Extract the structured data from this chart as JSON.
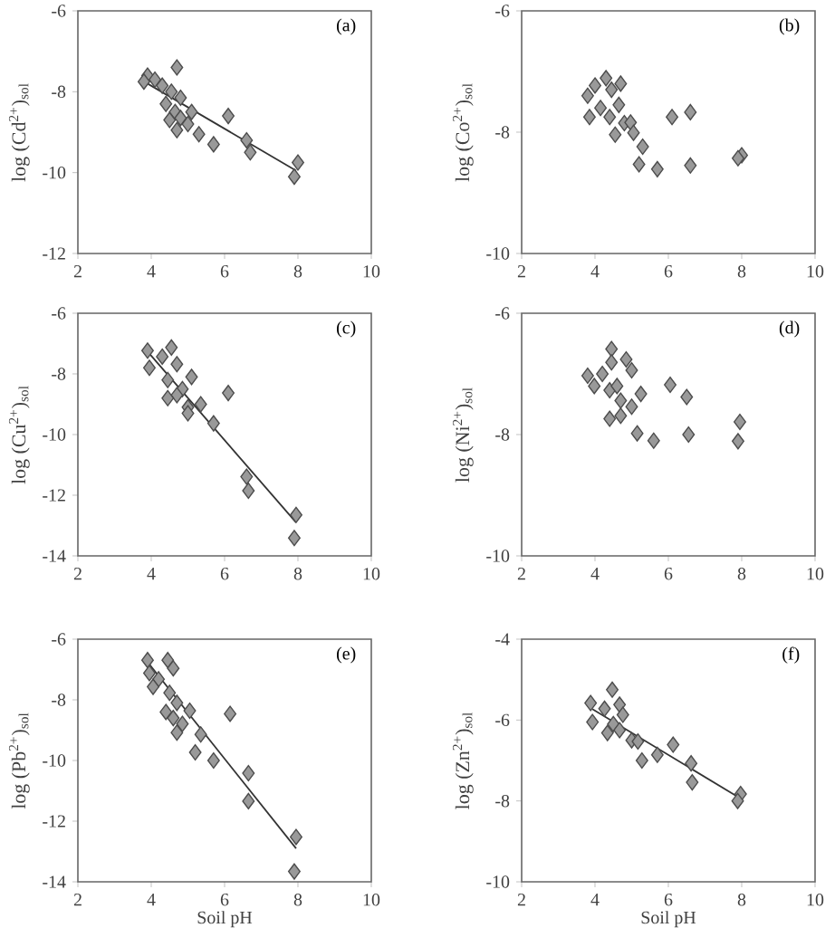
{
  "chart_data": [
    {
      "type": "scatter",
      "title": "(a)",
      "ylabel": "log (Cd$^{2+}$)$_{sol}$",
      "xlim": [
        2,
        10
      ],
      "xticks": [
        2,
        4,
        6,
        8,
        10
      ],
      "ylim": [
        -12,
        -6
      ],
      "yticks": [
        -12,
        -10,
        -8,
        -6
      ],
      "marker": "diamond",
      "series": [
        {
          "color": "#999999",
          "x": [
            3.9,
            3.8,
            4.1,
            4.3,
            4.7,
            4.55,
            4.8,
            4.4,
            4.65,
            4.5,
            4.8,
            5.1,
            5.0,
            4.7,
            5.3,
            5.7,
            6.1,
            6.6,
            6.7,
            8.0,
            7.9
          ],
          "values": [
            -7.6,
            -7.75,
            -7.7,
            -7.85,
            -7.4,
            -8.0,
            -8.15,
            -8.3,
            -8.5,
            -8.7,
            -8.65,
            -8.5,
            -8.8,
            -8.95,
            -9.05,
            -9.3,
            -8.6,
            -9.2,
            -9.5,
            -9.75,
            -10.1
          ]
        },
        {
          "type": "line",
          "marker": "none",
          "color": "#333333",
          "x": [
            3.9,
            7.95
          ],
          "values": [
            -7.8,
            -9.95
          ]
        }
      ]
    },
    {
      "type": "scatter",
      "title": "(b)",
      "ylabel": "log (Co$^{2+}$)$_{sol}$",
      "xlim": [
        2,
        10
      ],
      "xticks": [
        2,
        4,
        6,
        8,
        10
      ],
      "ylim": [
        -10,
        -6
      ],
      "yticks": [
        -10,
        -8,
        -6
      ],
      "marker": "diamond",
      "series": [
        {
          "color": "#999999",
          "x": [
            3.8,
            4.0,
            4.3,
            4.7,
            4.45,
            3.85,
            4.15,
            4.4,
            4.65,
            4.8,
            4.55,
            4.97,
            5.05,
            5.3,
            5.2,
            5.7,
            6.1,
            6.6,
            6.6,
            8.0,
            7.9
          ],
          "values": [
            -7.4,
            -7.23,
            -7.11,
            -7.2,
            -7.3,
            -7.75,
            -7.6,
            -7.75,
            -7.55,
            -7.85,
            -8.04,
            -7.84,
            -8.01,
            -8.24,
            -8.53,
            -8.61,
            -7.75,
            -7.67,
            -8.55,
            -8.38,
            -8.43
          ]
        }
      ]
    },
    {
      "type": "scatter",
      "title": "(c)",
      "ylabel": "log (Cu$^{2+}$)$_{sol}$",
      "xlim": [
        2,
        10
      ],
      "xticks": [
        2,
        4,
        6,
        8,
        10
      ],
      "ylim": [
        -14,
        -6
      ],
      "yticks": [
        -14,
        -12,
        -10,
        -8,
        -6
      ],
      "marker": "diamond",
      "series": [
        {
          "color": "#999999",
          "x": [
            3.9,
            4.3,
            4.55,
            3.95,
            4.7,
            4.45,
            5.1,
            4.85,
            4.7,
            4.45,
            5.0,
            5.35,
            5.0,
            5.7,
            6.1,
            6.6,
            6.65,
            7.95,
            7.9
          ],
          "values": [
            -7.23,
            -7.43,
            -7.13,
            -7.8,
            -7.68,
            -8.2,
            -8.1,
            -8.5,
            -8.7,
            -8.8,
            -9.1,
            -9.0,
            -9.3,
            -9.63,
            -8.63,
            -11.39,
            -11.85,
            -12.65,
            -13.41
          ]
        },
        {
          "type": "line",
          "marker": "none",
          "color": "#333333",
          "x": [
            3.95,
            7.95
          ],
          "values": [
            -7.33,
            -12.9
          ]
        }
      ]
    },
    {
      "type": "scatter",
      "title": "(d)",
      "ylabel": "log (Ni$^{2+}$)$_{sol}$",
      "xlim": [
        2,
        10
      ],
      "xticks": [
        2,
        4,
        6,
        8,
        10
      ],
      "ylim": [
        -10,
        -6
      ],
      "yticks": [
        -10,
        -8,
        -6
      ],
      "marker": "diamond",
      "series": [
        {
          "color": "#999999",
          "x": [
            4.45,
            3.8,
            3.98,
            4.2,
            4.45,
            4.85,
            5.0,
            4.4,
            4.6,
            4.7,
            5.25,
            5.0,
            4.7,
            4.4,
            5.15,
            5.6,
            6.05,
            6.5,
            6.55,
            7.95,
            7.9
          ],
          "values": [
            -6.59,
            -7.03,
            -7.2,
            -7.0,
            -6.81,
            -6.76,
            -6.94,
            -7.27,
            -7.2,
            -7.44,
            -7.33,
            -7.54,
            -7.69,
            -7.74,
            -7.98,
            -8.1,
            -7.18,
            -7.38,
            -8.0,
            -7.79,
            -8.11
          ]
        }
      ]
    },
    {
      "type": "scatter",
      "title": "(e)",
      "xlabel": "Soil pH",
      "ylabel": "log (Pb$^{2+}$)$_{sol}$",
      "xlim": [
        2,
        10
      ],
      "xticks": [
        2,
        4,
        6,
        8,
        10
      ],
      "ylim": [
        -14,
        -6
      ],
      "yticks": [
        -14,
        -12,
        -10,
        -8,
        -6
      ],
      "marker": "diamond",
      "series": [
        {
          "color": "#999999",
          "x": [
            3.9,
            4.45,
            4.6,
            3.95,
            4.2,
            4.05,
            4.5,
            4.7,
            4.4,
            5.05,
            4.6,
            4.85,
            4.7,
            5.35,
            5.2,
            5.7,
            6.15,
            6.65,
            6.65,
            7.95,
            7.9
          ],
          "values": [
            -6.69,
            -6.69,
            -6.96,
            -7.12,
            -7.32,
            -7.57,
            -7.77,
            -8.1,
            -8.4,
            -8.36,
            -8.6,
            -8.79,
            -9.08,
            -9.14,
            -9.73,
            -10.0,
            -8.46,
            -10.42,
            -11.34,
            -12.52,
            -13.66
          ]
        },
        {
          "type": "line",
          "marker": "none",
          "color": "#333333",
          "x": [
            3.95,
            7.95
          ],
          "values": [
            -6.83,
            -12.9
          ]
        }
      ]
    },
    {
      "type": "scatter",
      "title": "(f)",
      "xlabel": "Soil pH",
      "ylabel": "log (Zn$^{2+}$)$_{sol}$",
      "xlim": [
        2,
        10
      ],
      "xticks": [
        2,
        4,
        6,
        8,
        10
      ],
      "ylim": [
        -10,
        -4
      ],
      "yticks": [
        -10,
        -8,
        -6,
        -4
      ],
      "marker": "diamond",
      "series": [
        {
          "color": "#999999",
          "x": [
            4.47,
            3.88,
            3.93,
            4.26,
            4.67,
            4.76,
            4.5,
            4.34,
            4.67,
            5.0,
            5.17,
            5.28,
            5.7,
            6.13,
            6.62,
            6.65,
            7.97,
            7.89
          ],
          "values": [
            -5.25,
            -5.58,
            -6.05,
            -5.72,
            -5.62,
            -5.87,
            -6.1,
            -6.32,
            -6.25,
            -6.5,
            -6.53,
            -7.0,
            -6.86,
            -6.61,
            -7.07,
            -7.54,
            -7.83,
            -8.0
          ]
        },
        {
          "type": "line",
          "marker": "none",
          "color": "#333333",
          "x": [
            3.93,
            7.97
          ],
          "values": [
            -5.73,
            -7.94
          ]
        }
      ]
    }
  ]
}
